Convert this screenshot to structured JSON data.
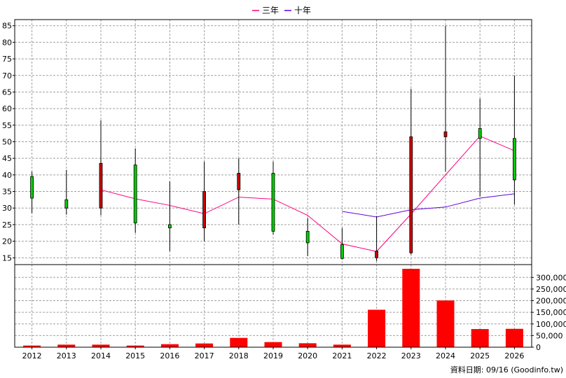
{
  "chart_data": {
    "type": "candlestick",
    "categories": [
      "2012",
      "2013",
      "2014",
      "2015",
      "2016",
      "2017",
      "2018",
      "2019",
      "2020",
      "2021",
      "2022",
      "2023",
      "2024",
      "2025",
      "2026"
    ],
    "price_axis": {
      "ylim": [
        14,
        86
      ],
      "ticks": [
        15,
        20,
        25,
        30,
        35,
        40,
        45,
        50,
        55,
        60,
        65,
        70,
        75,
        80,
        85
      ]
    },
    "volume_axis": {
      "ylim": [
        0,
        340000
      ],
      "ticks": [
        0,
        50000,
        100000,
        150000,
        200000,
        250000,
        300000
      ],
      "tick_labels": [
        "0",
        "50,000",
        "100,000",
        "150,000",
        "200,000",
        "250,000",
        "300,000"
      ]
    },
    "grid": true,
    "legend_position": "top-center",
    "candles": [
      {
        "x": "2012",
        "open": 33.0,
        "high": 41.0,
        "low": 28.5,
        "close": 39.5
      },
      {
        "x": "2013",
        "open": 30.0,
        "high": 41.5,
        "low": 28.0,
        "close": 32.5
      },
      {
        "x": "2014",
        "open": 43.5,
        "high": 56.5,
        "low": 27.8,
        "close": 30.0
      },
      {
        "x": "2015",
        "open": 25.5,
        "high": 48.0,
        "low": 22.5,
        "close": 43.0
      },
      {
        "x": "2016",
        "open": 24.0,
        "high": 38.0,
        "low": 17.0,
        "close": 25.0
      },
      {
        "x": "2017",
        "open": 35.0,
        "high": 44.0,
        "low": 20.0,
        "close": 24.0
      },
      {
        "x": "2018",
        "open": 40.5,
        "high": 45.0,
        "low": 25.0,
        "close": 35.5
      },
      {
        "x": "2019",
        "open": 23.0,
        "high": 44.0,
        "low": 22.0,
        "close": 40.5
      },
      {
        "x": "2020",
        "open": 19.5,
        "high": 27.0,
        "low": 15.5,
        "close": 23.0
      },
      {
        "x": "2021",
        "open": 14.8,
        "high": 24.0,
        "low": 14.5,
        "close": 19.0
      },
      {
        "x": "2022",
        "open": 17.0,
        "high": 27.5,
        "low": 14.0,
        "close": 15.0
      },
      {
        "x": "2023",
        "open": 51.5,
        "high": 66.0,
        "low": 16.0,
        "close": 16.5
      },
      {
        "x": "2024",
        "open": 53.0,
        "high": 85.0,
        "low": 41.0,
        "close": 51.5
      },
      {
        "x": "2025",
        "open": 51.0,
        "high": 63.0,
        "low": 33.5,
        "close": 54.0
      },
      {
        "x": "2026",
        "open": 38.5,
        "high": 70.0,
        "low": 31.0,
        "close": 51.0
      }
    ],
    "series": [
      {
        "name": "三年",
        "color": "#ff0080",
        "values": [
          null,
          null,
          35.5,
          32.8,
          30.8,
          28.3,
          33.3,
          32.7,
          27.8,
          19.2,
          16.9,
          28.2,
          40.0,
          51.7,
          47.3
        ]
      },
      {
        "name": "十年",
        "color": "#6000e0",
        "values": [
          null,
          null,
          null,
          null,
          null,
          null,
          null,
          null,
          null,
          29.0,
          27.3,
          29.5,
          30.3,
          33.0,
          34.3
        ]
      }
    ],
    "volume": {
      "color": "#ff0000",
      "values": [
        7000,
        11000,
        11000,
        7000,
        13000,
        16000,
        40000,
        22000,
        17000,
        11000,
        161000,
        337000,
        201000,
        78000,
        79000
      ]
    },
    "up_color": "#00cc00",
    "down_color": "#cc0000",
    "footer": "資料日期: 09/16  (Goodinfo.tw)"
  }
}
